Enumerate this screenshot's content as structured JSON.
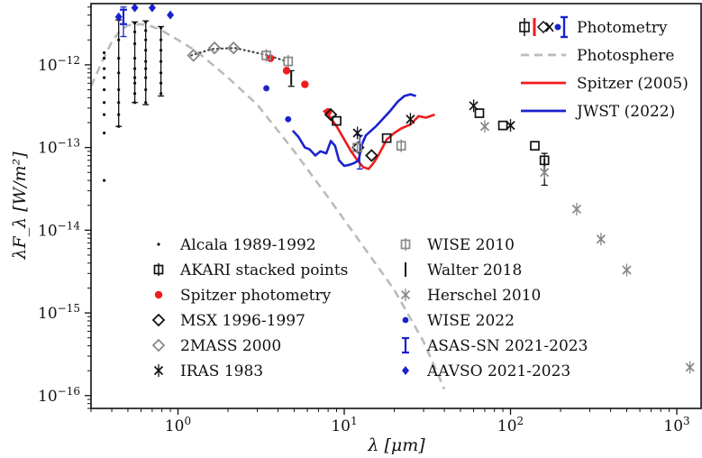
{
  "chart_data": {
    "type": "scatter",
    "xlabel": "λ [μm]",
    "ylabel": "λF_λ [W/m²]",
    "x_scale": "log",
    "y_scale": "log",
    "xlim": [
      0.3,
      1400
    ],
    "ylim": [
      7e-17,
      5.5e-12
    ],
    "grid": false,
    "x_ticks": [
      {
        "value": 1,
        "base": "10",
        "exp": "0"
      },
      {
        "value": 10,
        "base": "10",
        "exp": "1"
      },
      {
        "value": 100,
        "base": "10",
        "exp": "2"
      },
      {
        "value": 1000,
        "base": "10",
        "exp": "3"
      }
    ],
    "y_ticks": [
      {
        "value": 1e-16,
        "base": "10",
        "exp": "−16"
      },
      {
        "value": 1e-15,
        "base": "10",
        "exp": "−15"
      },
      {
        "value": 1e-14,
        "base": "10",
        "exp": "−14"
      },
      {
        "value": 1e-13,
        "base": "10",
        "exp": "−13"
      },
      {
        "value": 1e-12,
        "base": "10",
        "exp": "−12"
      }
    ],
    "lines": [
      {
        "name": "Photosphere",
        "color": "#bbbbbb",
        "dash": true,
        "x": [
          0.3,
          0.35,
          0.4,
          0.45,
          0.5,
          0.6,
          0.7,
          0.8,
          1.0,
          1.3,
          2.0,
          3.0,
          5.0,
          8.0,
          12,
          20,
          30,
          40
        ],
        "y": [
          5.5e-13,
          1.1e-12,
          1.9e-12,
          2.6e-12,
          3e-12,
          3.1e-12,
          2.9e-12,
          2.6e-12,
          2e-12,
          1.45e-12,
          7e-13,
          3.3e-13,
          9e-14,
          2.5e-14,
          8e-15,
          1.9e-15,
          4.5e-16,
          1.2e-16
        ]
      },
      {
        "name": "Spitzer (2005)",
        "color": "#ee1c1c",
        "dash": false,
        "x": [
          7.5,
          8,
          9,
          10,
          11,
          12,
          13,
          14,
          15,
          16,
          17,
          18,
          20,
          22,
          25,
          28,
          31,
          35
        ],
        "y": [
          2.8e-13,
          2.5e-13,
          1.8e-13,
          1.25e-13,
          9e-14,
          7e-14,
          5.8e-14,
          5.5e-14,
          6.5e-14,
          8e-14,
          1e-13,
          1.25e-13,
          1.5e-13,
          1.7e-13,
          1.9e-13,
          2.4e-13,
          2.3e-13,
          2.5e-13
        ]
      },
      {
        "name": "JWST (2022)",
        "color": "#1a22cc",
        "dash": false,
        "x": [
          4.9,
          5.3,
          5.8,
          6.2,
          6.7,
          7.2,
          7.8,
          8.3,
          8.8,
          9.3,
          10,
          10.8,
          11.5,
          12.2,
          12.8,
          13.5,
          14.5,
          15.5,
          17,
          19,
          21,
          23,
          25,
          27
        ],
        "y": [
          1.6e-13,
          1.35e-13,
          1e-13,
          9.5e-14,
          8e-14,
          9e-14,
          8.5e-14,
          1.2e-13,
          1.05e-13,
          7e-14,
          6e-14,
          6.2e-14,
          6.5e-14,
          7e-14,
          1.1e-13,
          1.4e-13,
          1.6e-13,
          1.8e-13,
          2.2e-13,
          2.8e-13,
          3.6e-13,
          4.2e-13,
          4.4e-13,
          4.2e-13
        ]
      },
      {
        "name": "",
        "color": "#444444",
        "dash": "dot",
        "x": [
          1.2,
          1.6,
          2.2,
          3.5,
          4.5
        ],
        "y": [
          1.3e-12,
          1.55e-12,
          1.6e-12,
          1.3e-12,
          1.1e-12
        ]
      }
    ],
    "series": [
      {
        "name": "Alcala 1989-1992",
        "marker": "dot",
        "color": "#111111",
        "x": [
          0.36,
          0.36,
          0.36,
          0.36,
          0.36,
          0.36,
          0.36,
          0.36,
          0.36,
          0.44,
          0.44,
          0.44,
          0.44,
          0.44,
          0.44,
          0.44,
          0.44,
          0.55,
          0.55,
          0.55,
          0.55,
          0.55,
          0.55,
          0.55,
          0.55,
          0.55,
          0.64,
          0.64,
          0.64,
          0.64,
          0.64,
          0.64,
          0.64,
          0.64,
          0.64,
          0.79,
          0.79,
          0.79,
          0.79,
          0.79,
          0.79,
          0.79
        ],
        "y": [
          1.4e-12,
          1.2e-12,
          9e-13,
          7e-13,
          5e-13,
          3.5e-13,
          2.5e-13,
          1.5e-13,
          4e-14,
          3.5e-12,
          2e-12,
          1.2e-12,
          8e-13,
          5e-13,
          3.5e-13,
          2.5e-13,
          1.8e-13,
          3.2e-12,
          2.5e-12,
          1.8e-12,
          1.2e-12,
          9e-13,
          7e-13,
          6e-13,
          4.5e-13,
          3.5e-13,
          3.3e-12,
          2.6e-12,
          2e-12,
          1.5e-12,
          1.1e-12,
          9e-13,
          7e-13,
          5e-13,
          3.5e-13,
          2.8e-12,
          2e-12,
          1.5e-12,
          1.1e-12,
          8e-13,
          6e-13,
          4.5e-13
        ]
      },
      {
        "name": "AKARI stacked points",
        "marker": "square-open",
        "color": "#111111",
        "x": [
          9,
          18,
          65,
          90,
          140,
          160
        ],
        "y": [
          2.1e-13,
          1.3e-13,
          2.6e-13,
          1.85e-13,
          1.05e-13,
          7e-14
        ]
      },
      {
        "name": "Spitzer photometry",
        "marker": "circle",
        "color": "#ee1c1c",
        "x": [
          3.6,
          4.5,
          5.8,
          8.0
        ],
        "y": [
          1.2e-12,
          8.5e-13,
          5.8e-13,
          2.7e-13
        ]
      },
      {
        "name": "MSX 1996-1997",
        "marker": "diamond-open",
        "color": "#111111",
        "x": [
          8.3,
          12.1,
          14.6
        ],
        "y": [
          2.5e-13,
          1e-13,
          8e-14
        ]
      },
      {
        "name": "2MASS 2000",
        "marker": "diamond-open",
        "color": "#888888",
        "x": [
          1.24,
          1.66,
          2.16
        ],
        "y": [
          1.3e-12,
          1.6e-12,
          1.6e-12
        ]
      },
      {
        "name": "IRAS 1983",
        "marker": "x-bar",
        "color": "#111111",
        "x": [
          12,
          25,
          60,
          100
        ],
        "y": [
          1.5e-13,
          2.2e-13,
          3.2e-13,
          1.85e-13
        ]
      },
      {
        "name": "WISE 2010",
        "marker": "square-open-bar",
        "color": "#888888",
        "x": [
          3.4,
          4.6,
          12,
          22
        ],
        "y": [
          1.3e-12,
          1.1e-12,
          1e-13,
          1.05e-13
        ]
      },
      {
        "name": "Walter 2018",
        "marker": "bar",
        "color": "#111111",
        "x": [
          4.8,
          160
        ],
        "y": [
          7e-13,
          6e-14
        ]
      },
      {
        "name": "Herschel 2010",
        "marker": "x-bar",
        "color": "#888888",
        "x": [
          70,
          160,
          250,
          350,
          500,
          1200
        ],
        "y": [
          1.8e-13,
          5e-14,
          1.8e-14,
          7.8e-15,
          3.3e-15,
          2.2e-16
        ]
      },
      {
        "name": "WISE 2022",
        "marker": "circle-small",
        "color": "#1a22cc",
        "x": [
          3.4,
          4.6
        ],
        "y": [
          5.2e-13,
          2.2e-13
        ]
      },
      {
        "name": "ASAS-SN 2021-2023",
        "marker": "bar-cap",
        "color": "#1a22cc",
        "x": [
          0.47
        ],
        "y": [
          3.8e-12
        ]
      },
      {
        "name": "AAVSO 2021-2023",
        "marker": "diamond-filled",
        "color": "#1a22cc",
        "x": [
          0.44,
          0.55,
          0.7,
          0.9
        ],
        "y": [
          3.8e-12,
          4.9e-12,
          4.9e-12,
          4e-12
        ]
      }
    ],
    "error_bars": [
      {
        "x": 0.47,
        "ylow": 2.2e-12,
        "yhigh": 5e-12,
        "color": "#1a22cc"
      },
      {
        "x": 0.44,
        "ylow": 1.8e-13,
        "yhigh": 3.5e-12,
        "color": "#111111"
      },
      {
        "x": 0.55,
        "ylow": 3.5e-13,
        "yhigh": 3.3e-12,
        "color": "#111111"
      },
      {
        "x": 0.64,
        "ylow": 3.3e-13,
        "yhigh": 3.4e-12,
        "color": "#111111"
      },
      {
        "x": 0.79,
        "ylow": 4.2e-13,
        "yhigh": 2.9e-12,
        "color": "#111111"
      },
      {
        "x": 4.8,
        "ylow": 5.5e-13,
        "yhigh": 8.5e-13,
        "color": "#111111"
      },
      {
        "x": 160,
        "ylow": 3.5e-14,
        "yhigh": 8.5e-14,
        "color": "#111111"
      },
      {
        "x": 12.4,
        "ylow": 5.5e-14,
        "yhigh": 1.4e-13,
        "color": "#1a22cc"
      }
    ],
    "legend_upper": {
      "placement": "top-right",
      "entries": [
        {
          "label": "Photometry",
          "sample": "photometry"
        },
        {
          "label": "Photosphere",
          "sample": "dash-gray"
        },
        {
          "label": "Spitzer (2005)",
          "sample": "line-red"
        },
        {
          "label": "JWST (2022)",
          "sample": "line-blue"
        }
      ]
    },
    "legend_lower": {
      "placement": "bottom-center",
      "entries": [
        {
          "label": "Alcala 1989-1992",
          "sample": "dot"
        },
        {
          "label": "WISE 2010",
          "sample": "square-open-bar-gray"
        },
        {
          "label": "AKARI stacked points",
          "sample": "square-open-bar"
        },
        {
          "label": "Walter 2018",
          "sample": "bar"
        },
        {
          "label": "Spitzer photometry",
          "sample": "circle-red"
        },
        {
          "label": "Herschel 2010",
          "sample": "x-gray"
        },
        {
          "label": "MSX 1996-1997",
          "sample": "diamond-open"
        },
        {
          "label": "WISE 2022",
          "sample": "circle-blue"
        },
        {
          "label": "2MASS 2000",
          "sample": "diamond-open-gray"
        },
        {
          "label": "ASAS-SN 2021-2023",
          "sample": "bar-cap-blue"
        },
        {
          "label": "IRAS 1983",
          "sample": "x-bar"
        },
        {
          "label": "AAVSO 2021-2023",
          "sample": "diamond-blue"
        }
      ]
    }
  }
}
